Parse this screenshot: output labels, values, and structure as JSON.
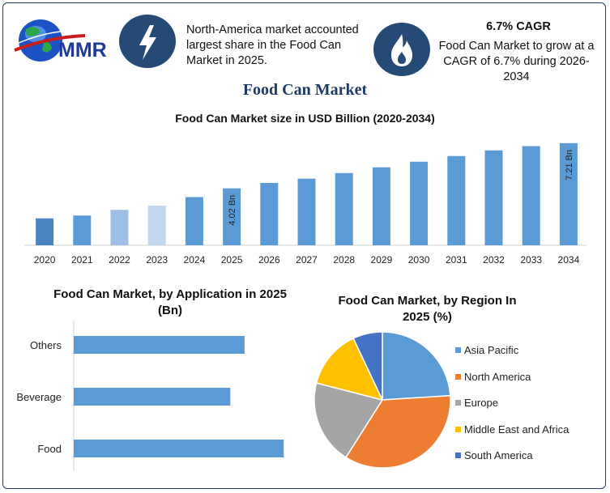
{
  "header": {
    "logo_text": "MMR",
    "left_info": {
      "icon": "lightning-icon",
      "text": "North-America market accounted largest share in the Food Can Market in 2025."
    },
    "right_info": {
      "icon": "flame-icon",
      "title": "6.7% CAGR",
      "text": "Food Can Market to grow at a CAGR of 6.7% during 2026-2034"
    }
  },
  "page_title": "Food Can Market",
  "colors": {
    "frame": "#1f3b63",
    "badge": "#254a75",
    "title": "#1f3b63",
    "bar": "#5b9bd5"
  },
  "chart_data": [
    {
      "type": "bar",
      "title": "Food Can Market size in USD Billion (2020-2034)",
      "categories": [
        "2020",
        "2021",
        "2022",
        "2023",
        "2024",
        "2025",
        "2026",
        "2027",
        "2028",
        "2029",
        "2030",
        "2031",
        "2032",
        "2033",
        "2034"
      ],
      "values": [
        1.9,
        2.1,
        2.5,
        2.8,
        3.4,
        4.02,
        4.4,
        4.7,
        5.1,
        5.5,
        5.9,
        6.3,
        6.7,
        7.0,
        7.21
      ],
      "colors": [
        "#4a83bf",
        "#5b9bd5",
        "#9ebfe5",
        "#c2d7ef",
        "#5b9bd5",
        "#5b9bd5",
        "#5b9bd5",
        "#5b9bd5",
        "#5b9bd5",
        "#5b9bd5",
        "#5b9bd5",
        "#5b9bd5",
        "#5b9bd5",
        "#5b9bd5",
        "#5b9bd5"
      ],
      "data_labels": {
        "2025": "4.02 Bn",
        "2034": "7.21 Bn"
      },
      "ylim": [
        0,
        7.6
      ],
      "grid": false
    },
    {
      "type": "bar",
      "orientation": "horizontal",
      "title": "Food Can Market, by Application in 2025 (Bn)",
      "categories": [
        "Others",
        "Beverage",
        "Food"
      ],
      "values": [
        2.4,
        2.2,
        2.95
      ],
      "xlim": [
        0,
        3.3
      ],
      "color": "#5b9bd5"
    },
    {
      "type": "pie",
      "title": "Food Can Market, by Region In 2025 (%)",
      "labels": [
        "Asia Pacific",
        "North America",
        "Europe",
        "Middle East and Africa",
        "South America"
      ],
      "values": [
        24,
        35,
        20,
        14,
        7
      ],
      "colors": [
        "#5b9bd5",
        "#ed7d31",
        "#a5a5a5",
        "#ffc000",
        "#4472c4"
      ],
      "legend_position": "right"
    }
  ]
}
